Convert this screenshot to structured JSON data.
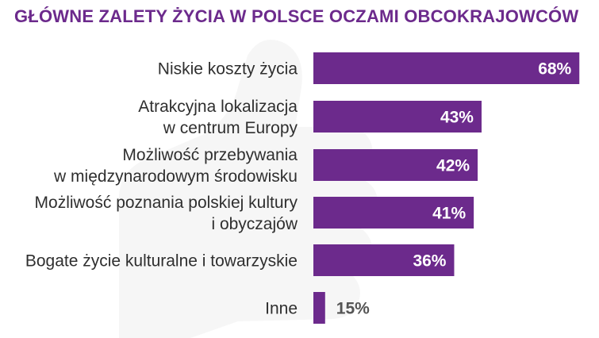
{
  "colors": {
    "bar": "#6c2a8c",
    "title": "#6c2a8c",
    "label": "#2f2f2f",
    "value_inside": "#ffffff",
    "value_outside": "#555555",
    "watermark": "#f6f6f6"
  },
  "chart_data": {
    "type": "bar",
    "orientation": "horizontal",
    "title": "GŁÓWNE ZALETY ŻYCIA W POLSCE OCZAMI OBCOKRAJOWCÓW",
    "categories": [
      [
        "Niskie koszty życia"
      ],
      [
        "Atrakcyjna lokalizacja",
        "w centrum Europy"
      ],
      [
        "Możliwość przebywania",
        "w międzynarodowym środowisku"
      ],
      [
        "Możliwość poznania polskiej kultury",
        "i obyczajów"
      ],
      [
        "Bogate życie kulturalne i towarzyskie"
      ],
      [
        "Inne"
      ]
    ],
    "values": [
      68,
      43,
      42,
      41,
      36,
      15
    ],
    "value_labels": [
      "68%",
      "43%",
      "42%",
      "41%",
      "36%",
      "15%"
    ],
    "unit": "%",
    "xlim": [
      0,
      100
    ],
    "grid": false,
    "legend": "none"
  }
}
